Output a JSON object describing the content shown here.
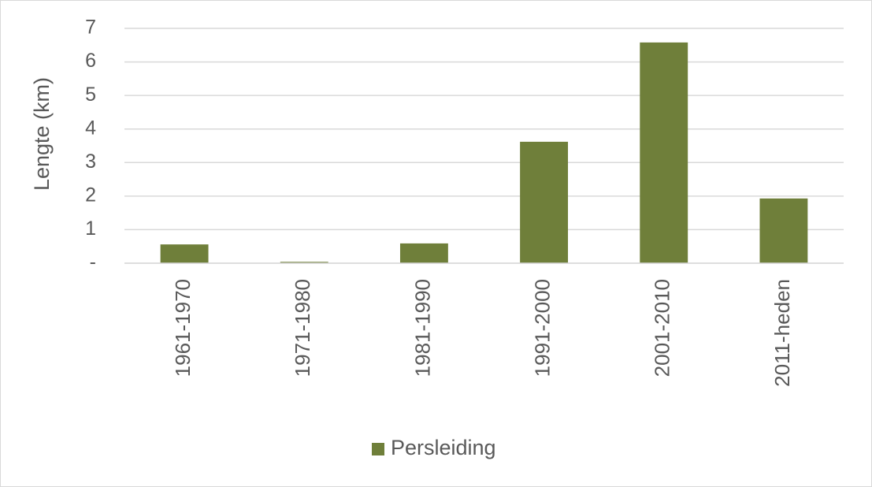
{
  "chart_data": {
    "type": "bar",
    "y_label": "Lengte (km)",
    "categories": [
      "1961-1970",
      "1971-1980",
      "1981-1990",
      "1991-2000",
      "2001-2010",
      "2011-heden"
    ],
    "series": [
      {
        "name": "Persleiding",
        "color": "#6f7f3a",
        "values": [
          0.56,
          0.04,
          0.59,
          3.62,
          6.58,
          1.93
        ]
      }
    ],
    "ylim": [
      0,
      7
    ],
    "yticks": [
      {
        "value": 0,
        "label": "-"
      },
      1,
      2,
      3,
      4,
      5,
      6,
      7
    ],
    "grid": true,
    "legend": "bottom"
  }
}
